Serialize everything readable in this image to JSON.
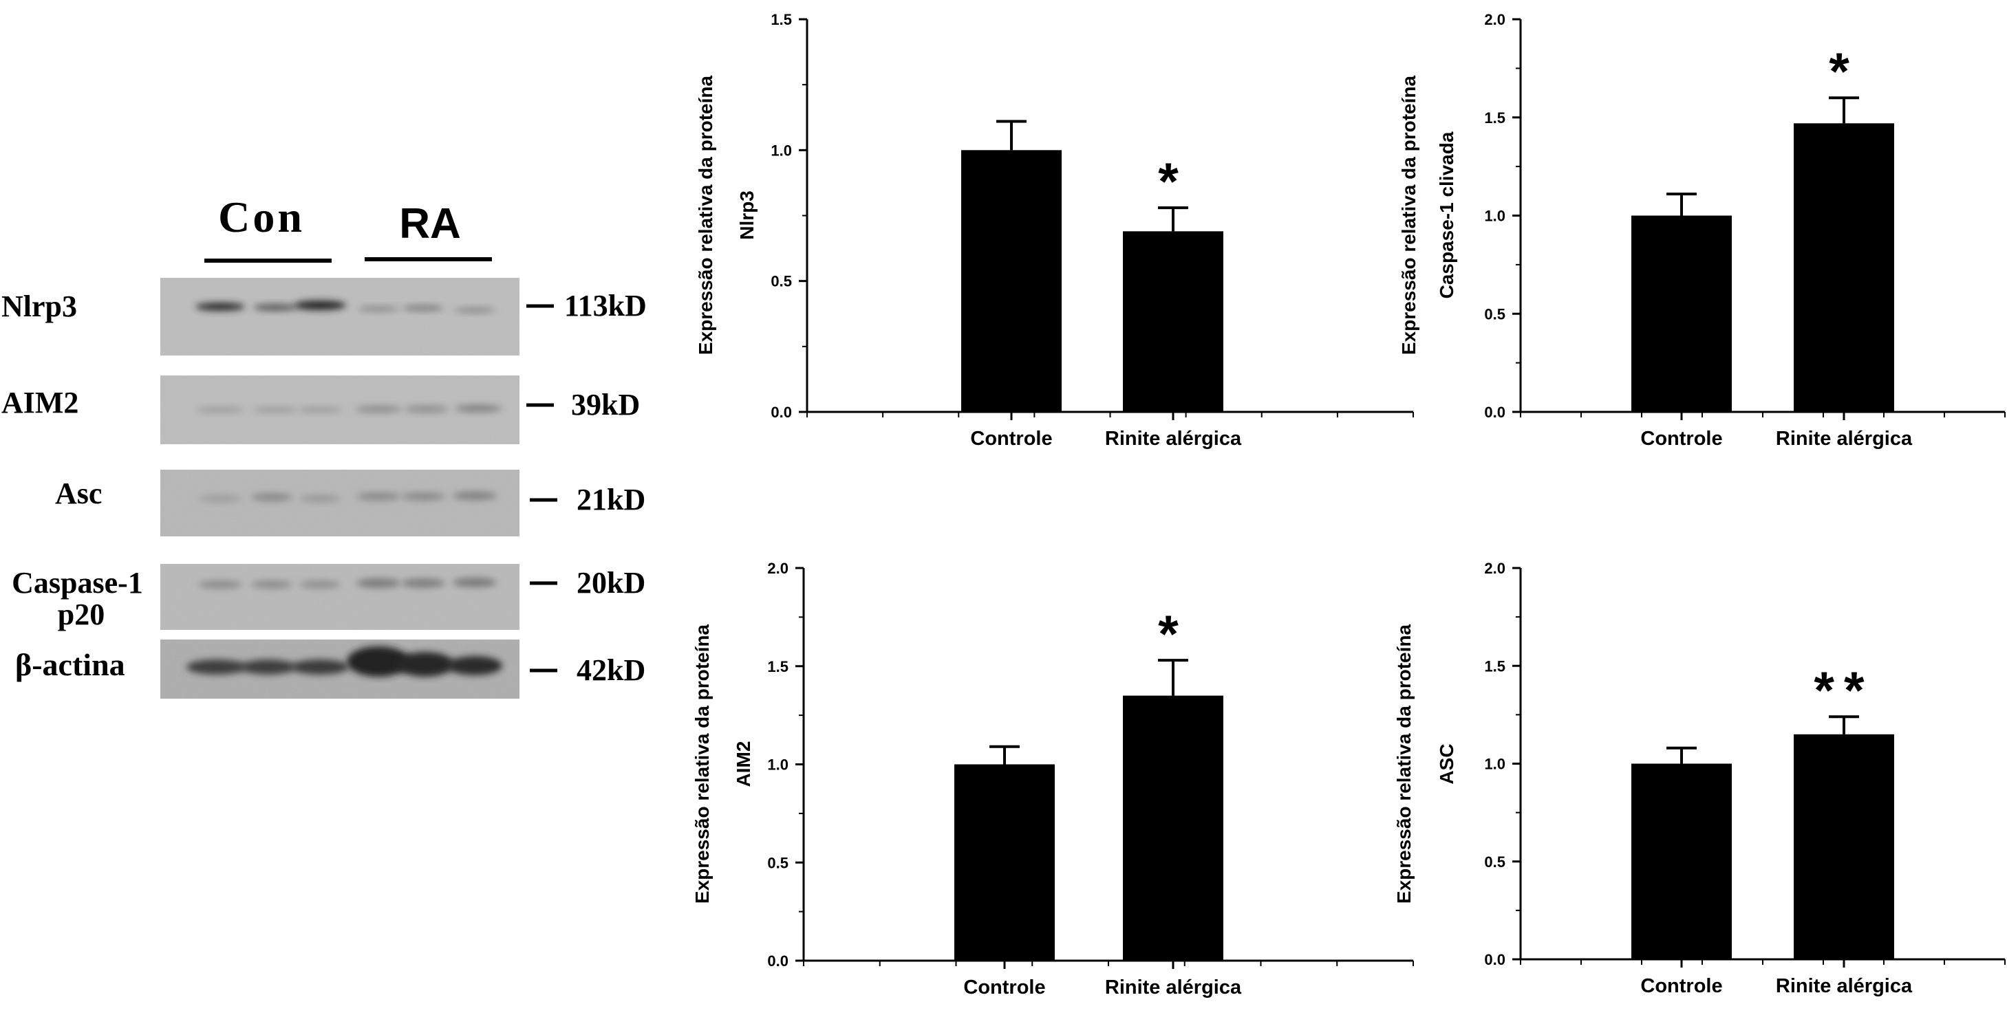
{
  "western_blot": {
    "groups": [
      "Con",
      "RA"
    ],
    "rows": [
      {
        "label": "Nlrp3",
        "kd": "113kD"
      },
      {
        "label": "AIM2",
        "kd": "39kD"
      },
      {
        "label": "Asc",
        "kd": "21kD"
      },
      {
        "label": "Caspase-1\np20",
        "kd": "20kD"
      },
      {
        "label": "β-actina",
        "kd": "42kD"
      }
    ]
  },
  "chart_data": [
    {
      "type": "bar",
      "categories": [
        "Controle",
        "Rinite alérgica"
      ],
      "values": [
        1.0,
        0.69
      ],
      "errors": [
        0.11,
        0.09
      ],
      "significance": [
        "",
        "*"
      ],
      "ylabel": [
        "Expressão relativa da proteína",
        "Nlrp3"
      ],
      "ylim": [
        0,
        1.5
      ],
      "yticks": [
        "0.0",
        "0.5",
        "1.0",
        "1.5"
      ],
      "ytick_values": [
        0,
        0.5,
        1.0,
        1.5
      ],
      "grid": false,
      "color": "#000000"
    },
    {
      "type": "bar",
      "categories": [
        "Controle",
        "Rinite alérgica"
      ],
      "values": [
        1.0,
        1.47
      ],
      "errors": [
        0.11,
        0.13
      ],
      "significance": [
        "",
        "*"
      ],
      "ylabel": [
        "Expressão relativa da proteína",
        "Caspase-1 clivada"
      ],
      "ylim": [
        0,
        2.0
      ],
      "yticks": [
        "0.0",
        "0.5",
        "1.0",
        "1.5",
        "2.0"
      ],
      "ytick_values": [
        0,
        0.5,
        1.0,
        1.5,
        2.0
      ],
      "grid": false,
      "color": "#000000"
    },
    {
      "type": "bar",
      "categories": [
        "Controle",
        "Rinite alérgica"
      ],
      "values": [
        1.0,
        1.35
      ],
      "errors": [
        0.09,
        0.18
      ],
      "significance": [
        "",
        "*"
      ],
      "ylabel": [
        "Expressão relativa da proteína",
        "AIM2"
      ],
      "ylim": [
        0,
        2.0
      ],
      "yticks": [
        "0.0",
        "0.5",
        "1.0",
        "1.5",
        "2.0"
      ],
      "ytick_values": [
        0,
        0.5,
        1.0,
        1.5,
        2.0
      ],
      "grid": false,
      "color": "#000000"
    },
    {
      "type": "bar",
      "categories": [
        "Controle",
        "Rinite alérgica"
      ],
      "values": [
        1.0,
        1.15
      ],
      "errors": [
        0.08,
        0.09
      ],
      "significance": [
        "",
        "**"
      ],
      "ylabel": [
        "Expressão relativa da proteína",
        "ASC"
      ],
      "ylim": [
        0,
        2.0
      ],
      "yticks": [
        "0.0",
        "0.5",
        "1.0",
        "1.5",
        "2.0"
      ],
      "ytick_values": [
        0,
        0.5,
        1.0,
        1.5,
        2.0
      ],
      "grid": false,
      "color": "#000000"
    }
  ]
}
